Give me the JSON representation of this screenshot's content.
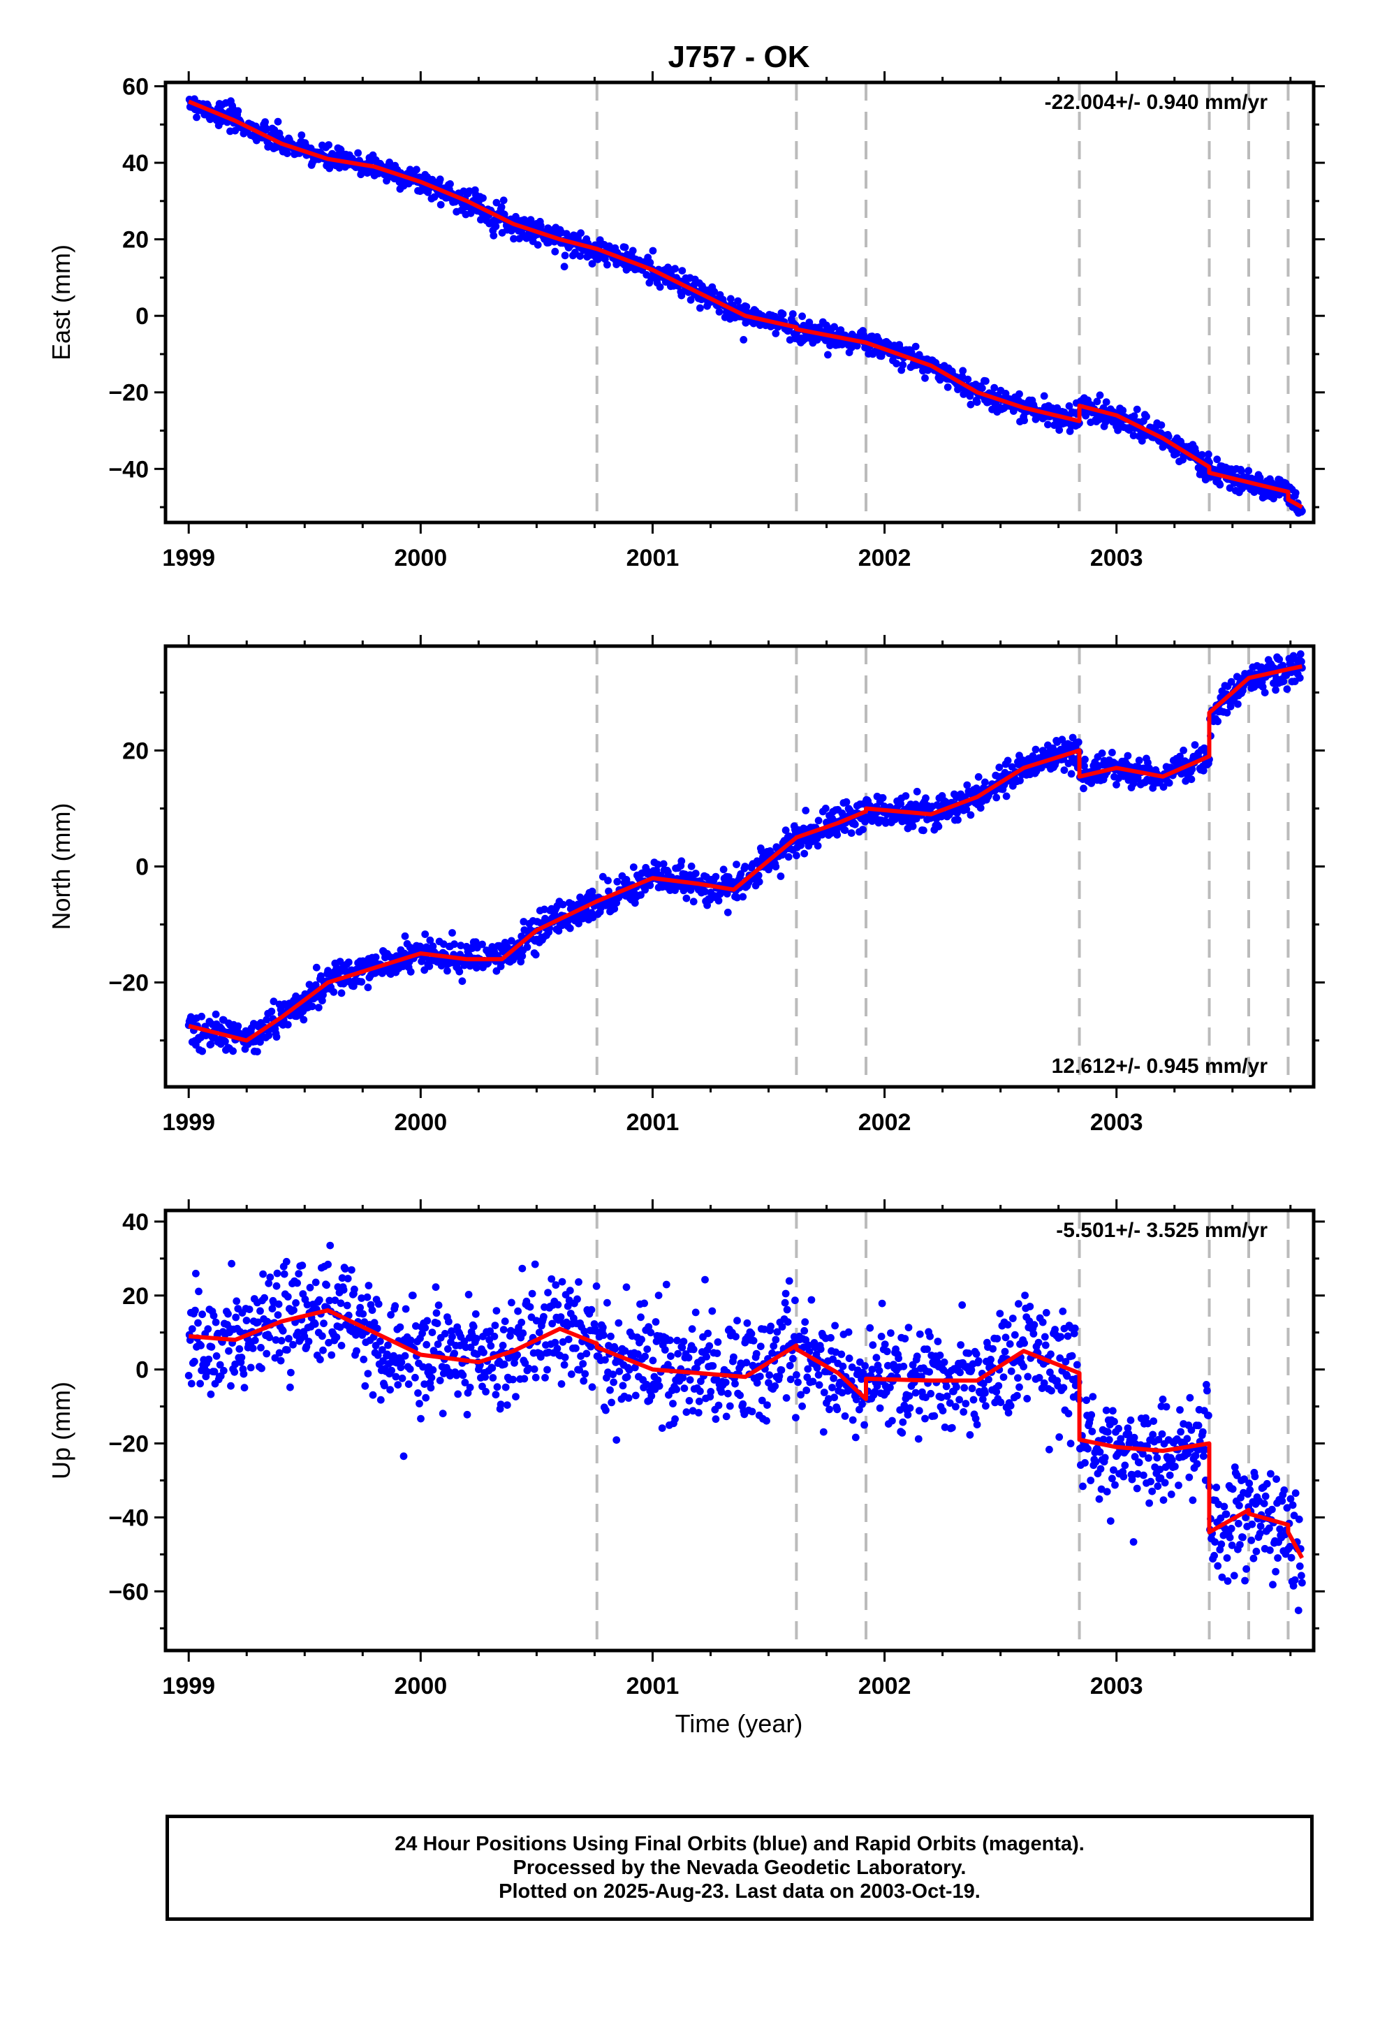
{
  "colors": {
    "observed": "#0000ff",
    "model": "#ff0000",
    "event_line": "#bbbbbb",
    "frame": "#000000"
  },
  "chart_data": {
    "type": "scatter",
    "title": "J757 - OK",
    "x_range": [
      1998.9,
      2003.85
    ],
    "x_ticks": [
      "1999",
      "2000",
      "2001",
      "2002",
      "2003"
    ],
    "xlabel": "Time (year)",
    "event_lines_decimal_year": [
      2000.76,
      2001.62,
      2001.92,
      2002.84,
      2003.4,
      2003.57,
      2003.74
    ],
    "panels": [
      {
        "ylabel": "East (mm)",
        "ylim": [
          -54,
          61
        ],
        "y_ticks": [
          "60",
          "40",
          "20",
          "0",
          "−20",
          "−40"
        ],
        "y_tick_values": [
          60,
          40,
          20,
          0,
          -20,
          -40
        ],
        "rate_label": "-22.004+/- 0.940 mm/yr",
        "rate_position": "top-right",
        "noise_sd_mm": 1.6,
        "model_x": [
          1999.0,
          1999.2,
          1999.4,
          1999.6,
          1999.8,
          2000.0,
          2000.2,
          2000.4,
          2000.6,
          2000.76,
          2000.76,
          2001.0,
          2001.2,
          2001.4,
          2001.62,
          2001.62,
          2001.92,
          2001.92,
          2002.2,
          2002.4,
          2002.6,
          2002.84,
          2002.84,
          2003.0,
          2003.2,
          2003.4,
          2003.4,
          2003.57,
          2003.57,
          2003.74,
          2003.74,
          2003.8
        ],
        "model_y": [
          56,
          51,
          45,
          41,
          39,
          35,
          30,
          24,
          20,
          17.5,
          17.5,
          12,
          6,
          0,
          -3,
          -3.5,
          -7,
          -7,
          -13,
          -20,
          -24,
          -27.5,
          -23.5,
          -26,
          -32,
          -39.5,
          -41,
          -43.5,
          -43.5,
          -46,
          -48,
          -50
        ]
      },
      {
        "ylabel": "North (mm)",
        "ylim": [
          -38,
          38
        ],
        "y_ticks": [
          "20",
          "0",
          "−20"
        ],
        "y_tick_values": [
          20,
          0,
          -20
        ],
        "rate_label": "12.612+/- 0.945 mm/yr",
        "rate_position": "bottom-right",
        "noise_sd_mm": 1.4,
        "model_x": [
          1999.0,
          1999.1,
          1999.25,
          1999.4,
          1999.6,
          1999.8,
          2000.0,
          2000.2,
          2000.35,
          2000.5,
          2000.76,
          2000.76,
          2001.0,
          2001.2,
          2001.35,
          2001.5,
          2001.62,
          2001.62,
          2001.8,
          2001.92,
          2001.92,
          2002.2,
          2002.4,
          2002.6,
          2002.84,
          2002.84,
          2003.0,
          2003.2,
          2003.4,
          2003.4,
          2003.5,
          2003.57,
          2003.57,
          2003.74,
          2003.74,
          2003.8
        ],
        "model_y": [
          -27.5,
          -28.5,
          -30,
          -26,
          -20,
          -17.5,
          -15,
          -16,
          -16,
          -11,
          -6,
          -6,
          -2,
          -3,
          -4,
          1,
          5,
          5,
          7.5,
          9.5,
          10,
          9,
          12,
          17,
          20,
          15.5,
          17,
          15.5,
          19,
          26.5,
          30,
          32.5,
          32.5,
          34,
          34,
          34.5
        ]
      },
      {
        "ylabel": "Up (mm)",
        "ylim": [
          -76,
          43
        ],
        "y_ticks": [
          "40",
          "20",
          "0",
          "−20",
          "−40",
          "−60"
        ],
        "y_tick_values": [
          40,
          20,
          0,
          -20,
          -40,
          -60
        ],
        "rate_label": "-5.501+/- 3.525 mm/yr",
        "rate_position": "top-right",
        "noise_sd_mm": 7,
        "model_x": [
          1999.0,
          1999.2,
          1999.4,
          1999.6,
          1999.8,
          2000.0,
          2000.25,
          2000.4,
          2000.6,
          2000.76,
          2000.76,
          2001.0,
          2001.2,
          2001.4,
          2001.62,
          2001.62,
          2001.8,
          2001.92,
          2001.92,
          2002.2,
          2002.4,
          2002.6,
          2002.84,
          2002.84,
          2003.0,
          2003.2,
          2003.4,
          2003.4,
          2003.57,
          2003.57,
          2003.74,
          2003.74,
          2003.8
        ],
        "model_y": [
          9,
          8,
          13,
          16,
          10,
          4,
          2,
          5,
          11,
          7,
          6,
          0,
          -1,
          -2,
          6.5,
          5.5,
          -1,
          -8,
          -2.5,
          -3,
          -3,
          5,
          -1,
          -19,
          -21,
          -22,
          -20,
          -44,
          -38,
          -39,
          -42,
          -44,
          -51
        ]
      }
    ]
  },
  "footer": {
    "line1": "24 Hour Positions Using Final Orbits (blue) and Rapid Orbits (magenta).",
    "line2": "Processed by the Nevada Geodetic Laboratory.",
    "line3": "Plotted on 2025-Aug-23. Last data on 2003-Oct-19."
  }
}
